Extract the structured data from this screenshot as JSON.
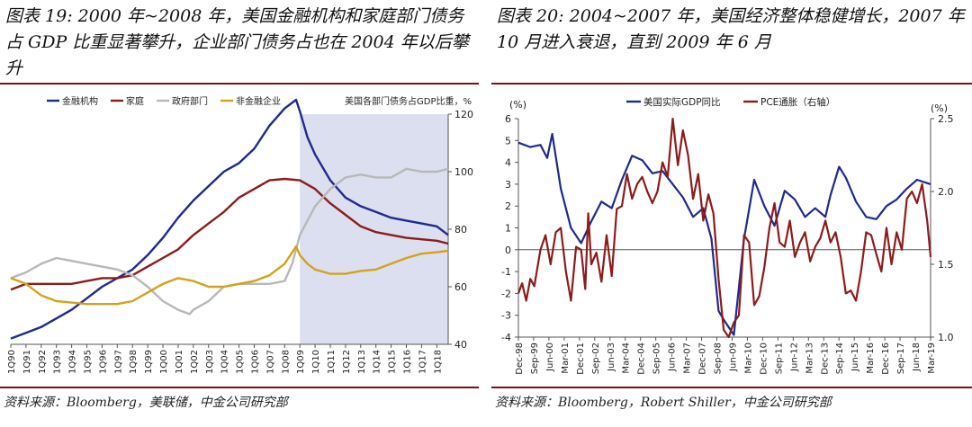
{
  "charts": {
    "left": {
      "title": "图表 19: 2000 年~2008 年，美国金融机构和家庭部门债务占 GDP 比重显著攀升，企业部门债务占也在 2004 年以后攀升",
      "source": "资料来源：Bloomberg，美联储，中金公司研究部"
    },
    "right": {
      "title": "图表 20: 2004~2007 年，美国经济整体稳健增长，2007 年 10 月进入衰退，直到 2009 年 6 月",
      "source": "资料来源：Bloomberg，Robert Shiller，中金公司研究部"
    }
  },
  "colors": {
    "navy": "#1f2a8c",
    "maroon": "#8b1c1c",
    "gray": "#b8b8b8",
    "gold": "#d4a21a",
    "shade": "#dcdff0",
    "rule": "#7a1016"
  },
  "chart_data": [
    {
      "type": "line",
      "title": "图表 19: 2000 年~2008 年，美国金融机构和家庭部门债务占 GDP 比重显著攀升，企业部门债务占也在 2004 年以后攀升",
      "ylabel": "美国各部门债务占GDP比重，%",
      "y_axis_side": "right",
      "ylim": [
        40,
        120
      ],
      "yticks": [
        40,
        60,
        80,
        100,
        120
      ],
      "xlim": [
        1990.0,
        2018.75
      ],
      "categories": [
        "1Q90",
        "1Q91",
        "1Q92",
        "1Q93",
        "1Q94",
        "1Q95",
        "1Q96",
        "1Q97",
        "1Q98",
        "1Q99",
        "1Q00",
        "1Q01",
        "1Q02",
        "1Q03",
        "1Q04",
        "1Q05",
        "1Q06",
        "1Q07",
        "1Q08",
        "1Q09",
        "1Q10",
        "1Q11",
        "1Q12",
        "1Q13",
        "1Q14",
        "1Q15",
        "1Q16",
        "1Q17",
        "1Q18"
      ],
      "shaded_region": [
        2009.0,
        2018.75
      ],
      "legend_position": "top-left",
      "series": [
        {
          "name": "金融机构",
          "color": "#1f2a8c",
          "x": [
            1990,
            1991,
            1992,
            1993,
            1994,
            1995,
            1996,
            1997,
            1998,
            1999,
            2000,
            2001,
            2002,
            2003,
            2004,
            2005,
            2006,
            2007,
            2008,
            2008.75,
            2009,
            2009.5,
            2010,
            2011,
            2012,
            2013,
            2014,
            2015,
            2016,
            2017,
            2018,
            2018.75
          ],
          "y": [
            42,
            44,
            46,
            49,
            52,
            56,
            60,
            63,
            66,
            71,
            77,
            84,
            90,
            95,
            100,
            103,
            108,
            116,
            122,
            125,
            121,
            112,
            106,
            97,
            91,
            88,
            86,
            84,
            83,
            82,
            81,
            78
          ]
        },
        {
          "name": "家庭",
          "color": "#8b1c1c",
          "x": [
            1990,
            1991,
            1992,
            1993,
            1994,
            1995,
            1996,
            1997,
            1998,
            1999,
            2000,
            2001,
            2002,
            2003,
            2004,
            2005,
            2006,
            2007,
            2008,
            2009,
            2010,
            2011,
            2012,
            2013,
            2014,
            2015,
            2016,
            2017,
            2018,
            2018.75
          ],
          "y": [
            59,
            61,
            61,
            61,
            61,
            62,
            63,
            63,
            64,
            67,
            70,
            73,
            78,
            82,
            86,
            91,
            94,
            97,
            97.5,
            97,
            94,
            89,
            85,
            81,
            79,
            78,
            77,
            76.5,
            76,
            75
          ]
        },
        {
          "name": "政府部门",
          "color": "#b8b8b8",
          "x": [
            1990,
            1991,
            1992,
            1993,
            1994,
            1995,
            1996,
            1997,
            1998,
            1999,
            2000,
            2001,
            2001.75,
            2002,
            2003,
            2004,
            2005,
            2006,
            2007,
            2008,
            2008.5,
            2009,
            2010,
            2011,
            2012,
            2013,
            2014,
            2015,
            2016,
            2017,
            2018,
            2018.75
          ],
          "y": [
            63,
            65,
            68,
            70,
            69,
            68,
            67,
            66,
            64,
            60,
            55,
            52,
            50.5,
            52,
            55,
            60,
            61,
            61,
            61,
            62,
            68,
            78,
            88,
            94,
            98,
            99,
            98,
            98,
            101,
            100,
            100,
            101
          ]
        },
        {
          "name": "非金融企业",
          "color": "#d4a21a",
          "x": [
            1990,
            1991,
            1992,
            1993,
            1994,
            1995,
            1996,
            1997,
            1998,
            1999,
            2000,
            2001,
            2002,
            2003,
            2004,
            2005,
            2006,
            2007,
            2008,
            2008.75,
            2009,
            2009.5,
            2010,
            2011,
            2012,
            2013,
            2014,
            2015,
            2016,
            2017,
            2018,
            2018.75
          ],
          "y": [
            63,
            61,
            57,
            55,
            54.5,
            54,
            54,
            54,
            55,
            58,
            61,
            63,
            62,
            60,
            60,
            61,
            62,
            64,
            68,
            74,
            71,
            68,
            66,
            64.5,
            64.5,
            65.5,
            66,
            68,
            70,
            71.5,
            72,
            72.5
          ]
        }
      ]
    },
    {
      "type": "line",
      "title": "图表 20: 2004~2007 年，美国经济整体稳健增长，2007 年 10 月进入衰退，直到 2009 年 6 月",
      "ylabel_left": "(%)",
      "ylabel_right": "(%)",
      "ylim_left": [
        -4,
        6
      ],
      "yticks_left": [
        -4,
        -3,
        -2,
        -1,
        0,
        1,
        2,
        3,
        4,
        5,
        6
      ],
      "ylim_right": [
        1.0,
        2.5
      ],
      "yticks_right": [
        1.0,
        1.5,
        2.0,
        2.5
      ],
      "xlim": [
        1998.917,
        2019.167
      ],
      "categories": [
        "Dec-98",
        "Sep-99",
        "Jun-00",
        "Mar-01",
        "Dec-01",
        "Sep-02",
        "Jun-03",
        "Mar-04",
        "Dec-04",
        "Sep-05",
        "Jun-06",
        "Mar-07",
        "Dec-07",
        "Sep-08",
        "Jun-09",
        "Mar-10",
        "Dec-10",
        "Sep-11",
        "Jun-12",
        "Mar-13",
        "Dec-13",
        "Sep-14",
        "Jun-15",
        "Mar-16",
        "Dec-16",
        "Sep-17",
        "Jun-18",
        "Mar-19"
      ],
      "legend_position": "top",
      "series": [
        {
          "name": "美国实际GDP同比",
          "axis": "left",
          "color": "#1f2a8c",
          "x": [
            1998.917,
            1999.5,
            2000,
            2000.33,
            2000.58,
            2001,
            2001.5,
            2002,
            2002.5,
            2003,
            2003.5,
            2004,
            2004.5,
            2005,
            2005.5,
            2006,
            2006.5,
            2007,
            2007.5,
            2008,
            2008.4,
            2008.75,
            2009,
            2009.5,
            2010,
            2010.5,
            2011,
            2011.5,
            2012,
            2012.5,
            2013,
            2013.5,
            2014,
            2014.25,
            2014.67,
            2015,
            2015.5,
            2016,
            2016.5,
            2017,
            2017.5,
            2018,
            2018.5,
            2019.167
          ],
          "y": [
            4.9,
            4.7,
            4.8,
            4.2,
            5.3,
            2.8,
            1.0,
            0.3,
            1.3,
            2.2,
            1.9,
            3.2,
            4.3,
            4.1,
            3.5,
            3.6,
            3.0,
            2.4,
            1.5,
            1.9,
            0.5,
            -2.8,
            -3.2,
            -3.9,
            0.5,
            3.2,
            2.0,
            1.1,
            2.7,
            2.3,
            1.5,
            1.9,
            1.5,
            2.5,
            3.8,
            3.3,
            2.2,
            1.5,
            1.4,
            2.0,
            2.3,
            2.8,
            3.2,
            3.0
          ]
        },
        {
          "name": "PCE通胀（右轴）",
          "axis": "right",
          "color": "#8b1c1c",
          "x": [
            1998.917,
            1999.1,
            1999.3,
            1999.5,
            1999.7,
            2000,
            2000.25,
            2000.5,
            2000.75,
            2001,
            2001.25,
            2001.5,
            2001.75,
            2002,
            2002.2,
            2002.35,
            2002.5,
            2002.75,
            2003,
            2003.25,
            2003.5,
            2003.75,
            2004,
            2004.25,
            2004.5,
            2004.75,
            2005,
            2005.25,
            2005.5,
            2005.75,
            2006,
            2006.25,
            2006.5,
            2006.75,
            2007,
            2007.25,
            2007.5,
            2007.75,
            2008,
            2008.25,
            2008.5,
            2008.75,
            2009,
            2009.25,
            2009.5,
            2009.75,
            2010,
            2010.25,
            2010.5,
            2010.75,
            2011,
            2011.25,
            2011.5,
            2011.75,
            2012,
            2012.25,
            2012.5,
            2012.75,
            2013,
            2013.25,
            2013.5,
            2013.75,
            2014,
            2014.25,
            2014.5,
            2014.75,
            2015,
            2015.25,
            2015.5,
            2015.75,
            2016,
            2016.25,
            2016.5,
            2016.75,
            2017,
            2017.25,
            2017.5,
            2017.75,
            2018,
            2018.25,
            2018.5,
            2018.75,
            2019,
            2019.167
          ],
          "y": [
            1.3,
            1.37,
            1.25,
            1.4,
            1.35,
            1.6,
            1.7,
            1.5,
            1.72,
            1.75,
            1.45,
            1.25,
            1.62,
            1.6,
            1.33,
            1.85,
            1.5,
            1.58,
            1.38,
            1.7,
            1.42,
            1.88,
            1.9,
            2.12,
            1.95,
            2.05,
            2.1,
            2.0,
            1.92,
            2.0,
            2.2,
            2.1,
            2.5,
            2.18,
            2.42,
            2.25,
            1.95,
            2.12,
            1.8,
            1.98,
            1.85,
            1.4,
            1.05,
            1.0,
            1.1,
            1.15,
            1.7,
            1.65,
            1.22,
            1.28,
            1.48,
            1.75,
            1.92,
            1.65,
            1.62,
            1.8,
            1.55,
            1.65,
            1.72,
            1.52,
            1.62,
            1.68,
            1.8,
            1.65,
            1.72,
            1.55,
            1.3,
            1.32,
            1.25,
            1.45,
            1.72,
            1.7,
            1.57,
            1.45,
            1.75,
            1.5,
            1.72,
            1.6,
            1.95,
            2.0,
            1.92,
            2.05,
            1.8,
            1.55
          ]
        }
      ]
    }
  ]
}
